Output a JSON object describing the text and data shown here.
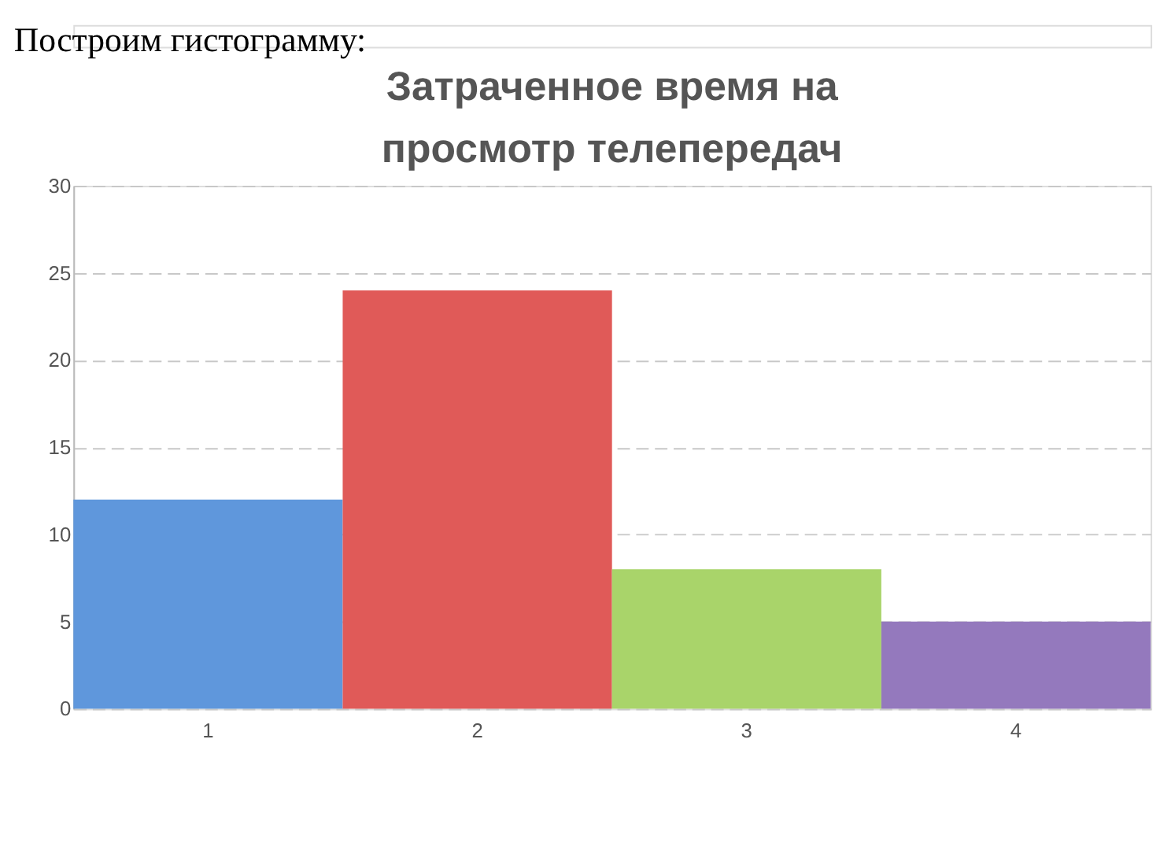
{
  "chart_data": {
    "type": "bar",
    "title": "Затраченное время на просмотр телепередач",
    "annotations": [
      "Построим гистограмму:"
    ],
    "categories": [
      "1",
      "2",
      "3",
      "4"
    ],
    "values": [
      12,
      24,
      8,
      5
    ],
    "colors": [
      "#5f97dc",
      "#e05a58",
      "#a9d46a",
      "#9479bd"
    ],
    "ylim": [
      0,
      30
    ],
    "yticks": [
      0,
      5,
      10,
      15,
      20,
      25,
      30
    ],
    "grid": "y"
  }
}
